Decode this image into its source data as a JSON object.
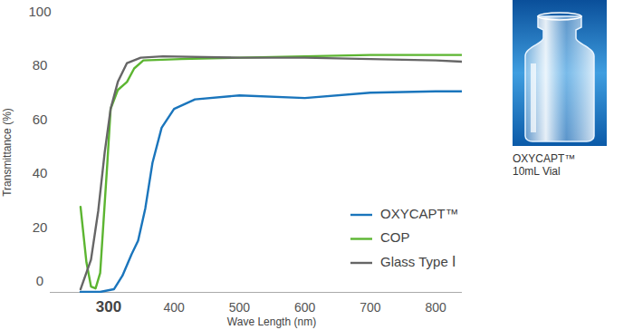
{
  "chart_data": {
    "type": "line",
    "x_label": "Wave Length (nm)",
    "y_label": "Transmittance (%)",
    "xlim": [
      210,
      840
    ],
    "xticks": [
      300,
      400,
      500,
      600,
      700,
      800
    ],
    "ylim": [
      0,
      100
    ],
    "yticks": [
      0,
      20,
      40,
      60,
      80,
      100
    ],
    "grid": false,
    "legend": "lower right",
    "series": [
      {
        "name": "OXYCAPT™",
        "color": "#1a75bc",
        "x": [
          257,
          287,
          308,
          321,
          335,
          345,
          356,
          367,
          381,
          400,
          432,
          500,
          600,
          700,
          800,
          840
        ],
        "values": [
          0,
          0,
          1,
          6,
          14,
          19,
          31,
          48,
          61,
          68,
          71.5,
          73,
          72,
          74,
          74.5,
          74.5
        ]
      },
      {
        "name": "COP",
        "color": "#5cb531",
        "x": [
          257,
          266,
          273,
          280,
          287,
          298,
          303,
          314,
          328,
          339,
          353,
          411,
          500,
          600,
          700,
          840
        ],
        "values": [
          31.6,
          11,
          2,
          1.3,
          7,
          48,
          68,
          75,
          78,
          83,
          86,
          86.5,
          87,
          87.5,
          88,
          88
        ]
      },
      {
        "name": "Glass Type Ⅰ",
        "color": "#666666",
        "x": [
          257,
          273,
          284,
          294,
          303,
          314,
          328,
          349,
          383,
          500,
          600,
          700,
          800,
          840
        ],
        "values": [
          1,
          12,
          30,
          52,
          68,
          78,
          85,
          87,
          87.5,
          87,
          87,
          86.5,
          86,
          85.5
        ]
      }
    ]
  },
  "image_caption": [
    "OXYCAPT™",
    "10mL Vial"
  ]
}
